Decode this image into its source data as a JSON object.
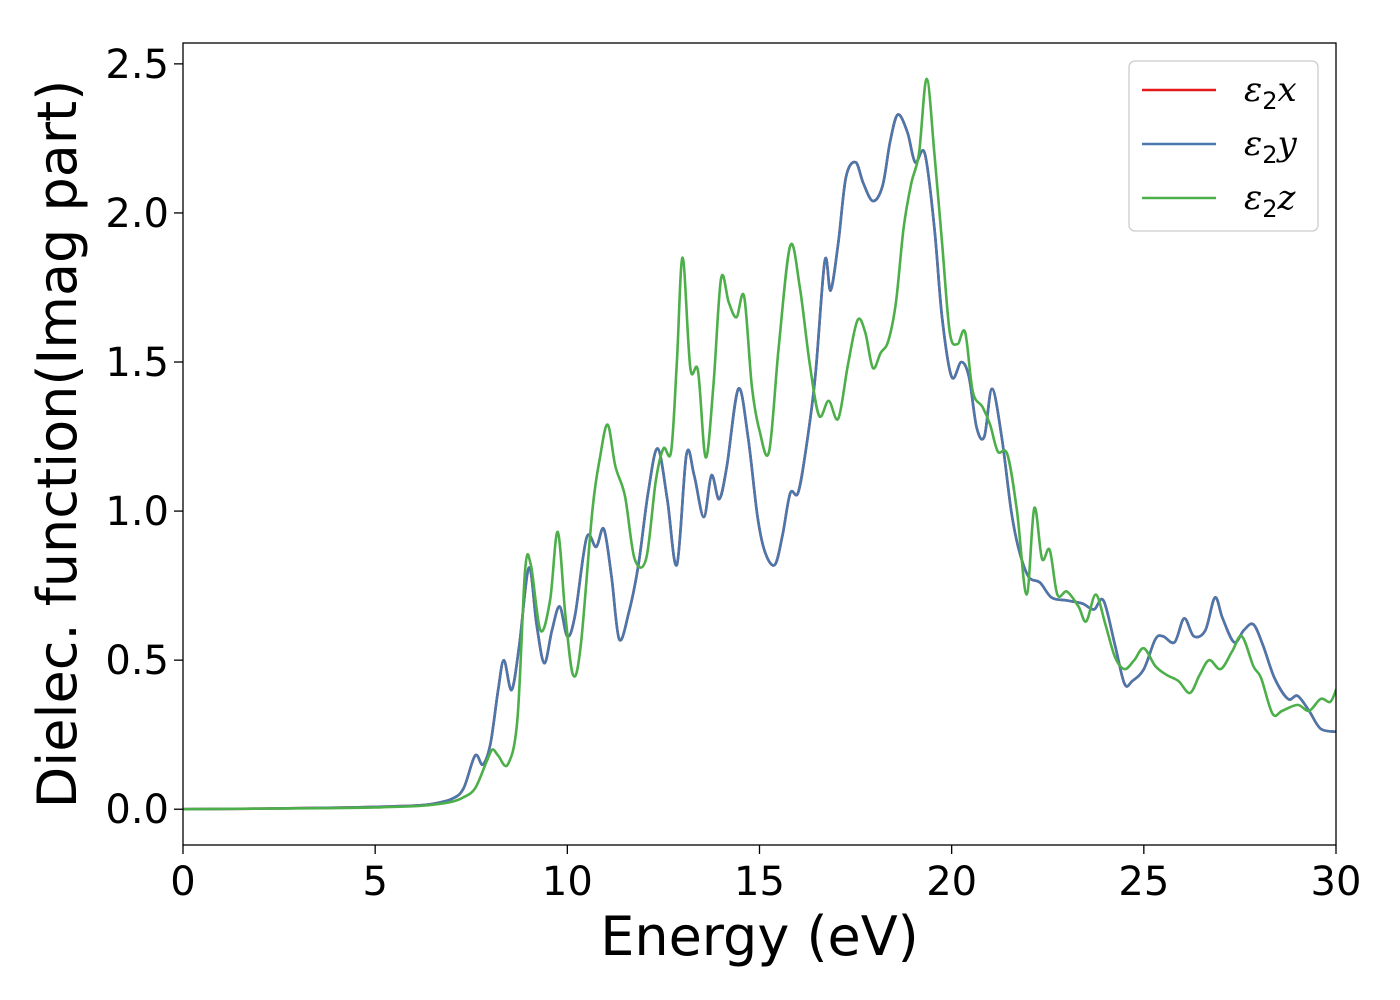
{
  "chart_data": {
    "type": "line",
    "title": "",
    "xlabel": "Energy (eV)",
    "ylabel": "Dielec. function(Imag part)",
    "xlim": [
      0,
      30
    ],
    "ylim": [
      -0.12,
      2.57
    ],
    "xticks": [
      0,
      5,
      10,
      15,
      20,
      25,
      30
    ],
    "yticks": [
      0.0,
      0.5,
      1.0,
      1.5,
      2.0,
      2.5
    ],
    "xtick_labels": [
      "0",
      "5",
      "10",
      "15",
      "20",
      "25",
      "30"
    ],
    "ytick_labels": [
      "0.0",
      "0.5",
      "1.0",
      "1.5",
      "2.0",
      "2.5"
    ],
    "grid": false,
    "legend_position": "top-right",
    "series": [
      {
        "name": "ε2x",
        "legend_base": "ε",
        "legend_sub": "2",
        "legend_suffix": "x",
        "color": "#e41a1c",
        "x": [
          0,
          2,
          4,
          5,
          6,
          6.5,
          7,
          7.3,
          7.6,
          7.8,
          8.0,
          8.2,
          8.35,
          8.55,
          8.75,
          9.0,
          9.2,
          9.4,
          9.6,
          9.8,
          10.0,
          10.2,
          10.5,
          10.75,
          10.95,
          11.15,
          11.35,
          11.6,
          11.85,
          12.1,
          12.35,
          12.6,
          12.85,
          13.1,
          13.3,
          13.55,
          13.75,
          13.95,
          14.15,
          14.45,
          14.7,
          14.95,
          15.15,
          15.4,
          15.6,
          15.8,
          16.0,
          16.2,
          16.45,
          16.7,
          16.85,
          17.05,
          17.25,
          17.5,
          17.7,
          17.95,
          18.2,
          18.4,
          18.6,
          18.85,
          19.05,
          19.3,
          19.55,
          19.75,
          20.0,
          20.25,
          20.45,
          20.65,
          20.85,
          21.05,
          21.3,
          21.55,
          21.75,
          22.0,
          22.3,
          22.6,
          23.0,
          23.4,
          23.7,
          23.95,
          24.25,
          24.5,
          24.7,
          25.0,
          25.3,
          25.5,
          25.8,
          26.05,
          26.3,
          26.6,
          26.85,
          27.05,
          27.35,
          27.6,
          27.85,
          28.1,
          28.4,
          28.75,
          29.0,
          29.3,
          29.6,
          30.0
        ],
        "y": [
          0.0,
          0.002,
          0.005,
          0.008,
          0.012,
          0.018,
          0.035,
          0.07,
          0.18,
          0.15,
          0.22,
          0.4,
          0.5,
          0.4,
          0.55,
          0.81,
          0.62,
          0.49,
          0.6,
          0.68,
          0.58,
          0.65,
          0.91,
          0.88,
          0.94,
          0.78,
          0.57,
          0.66,
          0.82,
          1.06,
          1.21,
          1.04,
          0.82,
          1.19,
          1.12,
          0.98,
          1.12,
          1.04,
          1.15,
          1.41,
          1.25,
          0.98,
          0.86,
          0.82,
          0.92,
          1.06,
          1.06,
          1.2,
          1.45,
          1.84,
          1.74,
          1.9,
          2.12,
          2.17,
          2.1,
          2.04,
          2.09,
          2.24,
          2.33,
          2.27,
          2.17,
          2.2,
          1.95,
          1.65,
          1.45,
          1.5,
          1.45,
          1.28,
          1.25,
          1.41,
          1.25,
          1.0,
          0.87,
          0.78,
          0.76,
          0.71,
          0.7,
          0.69,
          0.67,
          0.7,
          0.55,
          0.42,
          0.43,
          0.47,
          0.57,
          0.58,
          0.56,
          0.64,
          0.58,
          0.6,
          0.71,
          0.64,
          0.56,
          0.6,
          0.62,
          0.55,
          0.44,
          0.37,
          0.38,
          0.33,
          0.27,
          0.26
        ]
      },
      {
        "name": "ε2y",
        "legend_base": "ε",
        "legend_sub": "2",
        "legend_suffix": "y",
        "color": "#4a78ac",
        "x": [
          0,
          2,
          4,
          5,
          6,
          6.5,
          7,
          7.3,
          7.6,
          7.8,
          8.0,
          8.2,
          8.35,
          8.55,
          8.75,
          9.0,
          9.2,
          9.4,
          9.6,
          9.8,
          10.0,
          10.2,
          10.5,
          10.75,
          10.95,
          11.15,
          11.35,
          11.6,
          11.85,
          12.1,
          12.35,
          12.6,
          12.85,
          13.1,
          13.3,
          13.55,
          13.75,
          13.95,
          14.15,
          14.45,
          14.7,
          14.95,
          15.15,
          15.4,
          15.6,
          15.8,
          16.0,
          16.2,
          16.45,
          16.7,
          16.85,
          17.05,
          17.25,
          17.5,
          17.7,
          17.95,
          18.2,
          18.4,
          18.6,
          18.85,
          19.05,
          19.3,
          19.55,
          19.75,
          20.0,
          20.25,
          20.45,
          20.65,
          20.85,
          21.05,
          21.3,
          21.55,
          21.75,
          22.0,
          22.3,
          22.6,
          23.0,
          23.4,
          23.7,
          23.95,
          24.25,
          24.5,
          24.7,
          25.0,
          25.3,
          25.5,
          25.8,
          26.05,
          26.3,
          26.6,
          26.85,
          27.05,
          27.35,
          27.6,
          27.85,
          28.1,
          28.4,
          28.75,
          29.0,
          29.3,
          29.6,
          30.0
        ],
        "y": [
          0.0,
          0.002,
          0.005,
          0.008,
          0.012,
          0.018,
          0.035,
          0.07,
          0.18,
          0.15,
          0.22,
          0.4,
          0.5,
          0.4,
          0.55,
          0.81,
          0.62,
          0.49,
          0.6,
          0.68,
          0.58,
          0.65,
          0.91,
          0.88,
          0.94,
          0.78,
          0.57,
          0.66,
          0.82,
          1.06,
          1.21,
          1.04,
          0.82,
          1.19,
          1.12,
          0.98,
          1.12,
          1.04,
          1.15,
          1.41,
          1.25,
          0.98,
          0.86,
          0.82,
          0.92,
          1.06,
          1.06,
          1.2,
          1.45,
          1.84,
          1.74,
          1.9,
          2.12,
          2.17,
          2.1,
          2.04,
          2.09,
          2.24,
          2.33,
          2.27,
          2.17,
          2.2,
          1.95,
          1.65,
          1.45,
          1.5,
          1.45,
          1.28,
          1.25,
          1.41,
          1.25,
          1.0,
          0.87,
          0.78,
          0.76,
          0.71,
          0.7,
          0.69,
          0.67,
          0.7,
          0.55,
          0.42,
          0.43,
          0.47,
          0.57,
          0.58,
          0.56,
          0.64,
          0.58,
          0.6,
          0.71,
          0.64,
          0.56,
          0.6,
          0.62,
          0.55,
          0.44,
          0.37,
          0.38,
          0.33,
          0.27,
          0.26
        ]
      },
      {
        "name": "ε2z",
        "legend_base": "ε",
        "legend_sub": "2",
        "legend_suffix": "z",
        "color": "#4daf4a",
        "x": [
          0,
          2,
          4,
          5,
          6,
          6.5,
          7,
          7.3,
          7.6,
          7.9,
          8.05,
          8.2,
          8.45,
          8.7,
          8.9,
          9.05,
          9.3,
          9.55,
          9.75,
          9.95,
          10.15,
          10.35,
          10.65,
          10.85,
          11.05,
          11.25,
          11.5,
          11.75,
          12.05,
          12.3,
          12.5,
          12.7,
          12.85,
          13.0,
          13.2,
          13.4,
          13.6,
          13.8,
          14.0,
          14.2,
          14.4,
          14.6,
          14.8,
          15.0,
          15.25,
          15.5,
          15.8,
          16.05,
          16.3,
          16.55,
          16.8,
          17.05,
          17.3,
          17.55,
          17.75,
          17.95,
          18.15,
          18.35,
          18.55,
          18.75,
          18.95,
          19.15,
          19.35,
          19.55,
          19.75,
          19.95,
          20.15,
          20.35,
          20.55,
          20.8,
          21.0,
          21.2,
          21.45,
          21.7,
          21.95,
          22.15,
          22.35,
          22.55,
          22.75,
          23.0,
          23.3,
          23.5,
          23.75,
          24.0,
          24.25,
          24.5,
          24.75,
          25.0,
          25.3,
          25.6,
          25.9,
          26.2,
          26.45,
          26.7,
          27.0,
          27.3,
          27.55,
          27.85,
          28.05,
          28.35,
          28.6,
          29.0,
          29.3,
          29.6,
          29.85,
          30.0
        ],
        "y": [
          0.0,
          0.002,
          0.004,
          0.006,
          0.01,
          0.015,
          0.025,
          0.04,
          0.07,
          0.16,
          0.2,
          0.18,
          0.15,
          0.3,
          0.8,
          0.82,
          0.6,
          0.7,
          0.93,
          0.65,
          0.45,
          0.55,
          1.0,
          1.18,
          1.29,
          1.15,
          1.05,
          0.84,
          0.84,
          1.1,
          1.21,
          1.2,
          1.5,
          1.85,
          1.48,
          1.47,
          1.18,
          1.42,
          1.78,
          1.7,
          1.65,
          1.72,
          1.42,
          1.27,
          1.2,
          1.55,
          1.89,
          1.75,
          1.5,
          1.32,
          1.37,
          1.31,
          1.49,
          1.64,
          1.6,
          1.48,
          1.53,
          1.57,
          1.7,
          1.95,
          2.1,
          2.2,
          2.45,
          2.2,
          1.9,
          1.6,
          1.56,
          1.6,
          1.4,
          1.35,
          1.29,
          1.2,
          1.19,
          1.0,
          0.72,
          1.01,
          0.84,
          0.87,
          0.72,
          0.73,
          0.68,
          0.63,
          0.72,
          0.62,
          0.51,
          0.47,
          0.5,
          0.54,
          0.48,
          0.45,
          0.43,
          0.39,
          0.45,
          0.5,
          0.47,
          0.53,
          0.58,
          0.48,
          0.44,
          0.32,
          0.33,
          0.35,
          0.33,
          0.37,
          0.36,
          0.4
        ]
      }
    ]
  }
}
